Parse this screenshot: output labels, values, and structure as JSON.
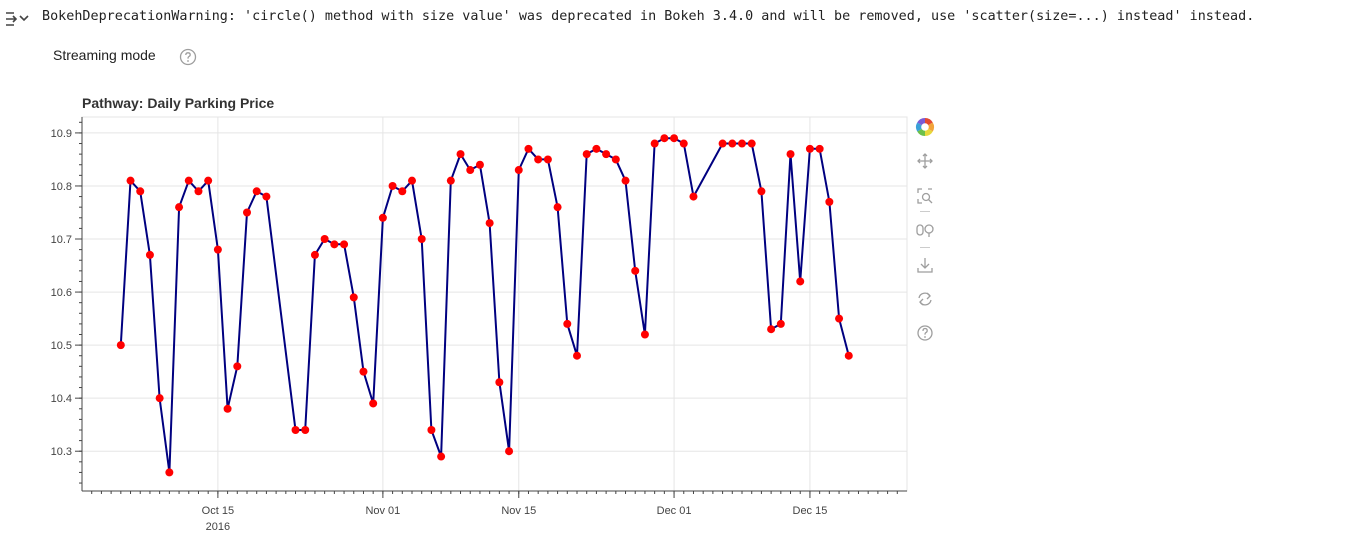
{
  "output": {
    "warning_text": "BokehDeprecationWarning: 'circle() method with size value' was deprecated in Bokeh 3.4.0 and will be removed, use 'scatter(size=...) instead' instead."
  },
  "widget": {
    "label": "Streaming mode"
  },
  "toolbar": {
    "tools": [
      "bokeh-logo-icon",
      "pan-icon",
      "box-zoom-icon",
      "wheel-zoom-icon",
      "save-icon",
      "reset-icon",
      "help-icon"
    ]
  },
  "colors": {
    "line": "#000080",
    "marker": "#ff0000",
    "grid": "#e5e5e5",
    "axis": "#444444"
  },
  "chart_data": {
    "type": "line",
    "title": "Pathway: Daily Parking Price",
    "xlabel": "",
    "ylabel": "",
    "x_ticks": [
      {
        "date": "2016-10-15",
        "label": "Oct 15",
        "sublabel": "2016"
      },
      {
        "date": "2016-11-01",
        "label": "Nov 01",
        "sublabel": ""
      },
      {
        "date": "2016-11-15",
        "label": "Nov 15",
        "sublabel": ""
      },
      {
        "date": "2016-12-01",
        "label": "Dec 01",
        "sublabel": ""
      },
      {
        "date": "2016-12-15",
        "label": "Dec 15",
        "sublabel": ""
      }
    ],
    "y_ticks": [
      10.3,
      10.4,
      10.5,
      10.6,
      10.7,
      10.8,
      10.9
    ],
    "y_tick_labels": [
      "10.3",
      "10.4",
      "10.5",
      "10.6",
      "10.7",
      "10.8",
      "10.9"
    ],
    "xlim": [
      "2016-10-01",
      "2016-12-25"
    ],
    "ylim": [
      10.225,
      10.93
    ],
    "grid": true,
    "series": [
      {
        "markers": true,
        "points": [
          [
            "2016-10-05",
            10.5
          ],
          [
            "2016-10-06",
            10.81
          ],
          [
            "2016-10-07",
            10.79
          ],
          [
            "2016-10-08",
            10.67
          ],
          [
            "2016-10-09",
            10.4
          ],
          [
            "2016-10-10",
            10.26
          ],
          [
            "2016-10-11",
            10.76
          ],
          [
            "2016-10-12",
            10.81
          ],
          [
            "2016-10-13",
            10.79
          ],
          [
            "2016-10-14",
            10.81
          ],
          [
            "2016-10-15",
            10.68
          ],
          [
            "2016-10-16",
            10.38
          ],
          [
            "2016-10-17",
            10.46
          ],
          [
            "2016-10-18",
            10.75
          ],
          [
            "2016-10-19",
            10.79
          ],
          [
            "2016-10-20",
            10.78
          ],
          [
            "2016-10-23",
            10.34
          ],
          [
            "2016-10-24",
            10.34
          ],
          [
            "2016-10-25",
            10.67
          ],
          [
            "2016-10-26",
            10.7
          ],
          [
            "2016-10-27",
            10.69
          ],
          [
            "2016-10-28",
            10.69
          ],
          [
            "2016-10-29",
            10.59
          ],
          [
            "2016-10-30",
            10.45
          ],
          [
            "2016-10-31",
            10.39
          ],
          [
            "2016-11-01",
            10.74
          ],
          [
            "2016-11-02",
            10.8
          ],
          [
            "2016-11-03",
            10.79
          ],
          [
            "2016-11-04",
            10.81
          ],
          [
            "2016-11-05",
            10.7
          ],
          [
            "2016-11-06",
            10.34
          ],
          [
            "2016-11-07",
            10.29
          ],
          [
            "2016-11-08",
            10.81
          ],
          [
            "2016-11-09",
            10.86
          ],
          [
            "2016-11-10",
            10.83
          ],
          [
            "2016-11-11",
            10.84
          ],
          [
            "2016-11-12",
            10.73
          ],
          [
            "2016-11-13",
            10.43
          ],
          [
            "2016-11-14",
            10.3
          ],
          [
            "2016-11-15",
            10.83
          ],
          [
            "2016-11-16",
            10.87
          ],
          [
            "2016-11-17",
            10.85
          ],
          [
            "2016-11-18",
            10.85
          ],
          [
            "2016-11-19",
            10.76
          ],
          [
            "2016-11-20",
            10.54
          ],
          [
            "2016-11-21",
            10.48
          ],
          [
            "2016-11-22",
            10.86
          ],
          [
            "2016-11-23",
            10.87
          ],
          [
            "2016-11-24",
            10.86
          ],
          [
            "2016-11-25",
            10.85
          ],
          [
            "2016-11-26",
            10.81
          ],
          [
            "2016-11-27",
            10.64
          ],
          [
            "2016-11-28",
            10.52
          ],
          [
            "2016-11-29",
            10.88
          ],
          [
            "2016-11-30",
            10.89
          ],
          [
            "2016-12-01",
            10.89
          ],
          [
            "2016-12-02",
            10.88
          ],
          [
            "2016-12-03",
            10.78
          ],
          [
            "2016-12-06",
            10.88
          ],
          [
            "2016-12-07",
            10.88
          ],
          [
            "2016-12-08",
            10.88
          ],
          [
            "2016-12-09",
            10.88
          ],
          [
            "2016-12-10",
            10.79
          ],
          [
            "2016-12-11",
            10.53
          ],
          [
            "2016-12-12",
            10.54
          ],
          [
            "2016-12-13",
            10.86
          ],
          [
            "2016-12-14",
            10.62
          ],
          [
            "2016-12-15",
            10.87
          ],
          [
            "2016-12-16",
            10.87
          ],
          [
            "2016-12-17",
            10.77
          ],
          [
            "2016-12-18",
            10.55
          ],
          [
            "2016-12-19",
            10.48
          ]
        ]
      }
    ]
  }
}
